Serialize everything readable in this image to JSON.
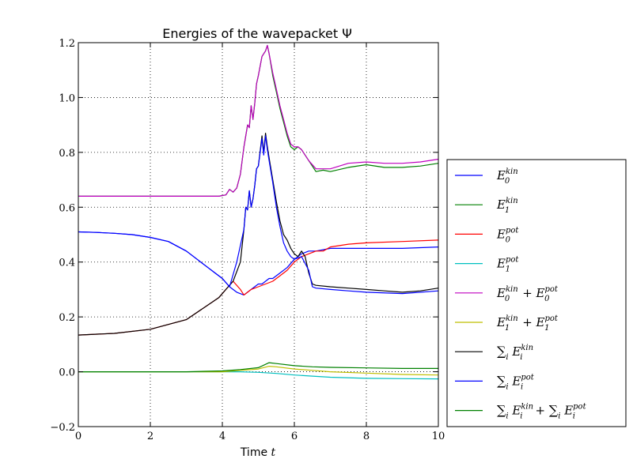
{
  "chart_data": {
    "type": "line",
    "title": "Energies of the wavepacket Ψ",
    "xlabel": "Time t",
    "ylabel": "",
    "xlim": [
      0,
      10
    ],
    "ylim": [
      -0.2,
      1.2
    ],
    "xticks": [
      "0",
      "2",
      "4",
      "6",
      "8",
      "10"
    ],
    "yticks": [
      "−0.2",
      "0.0",
      "0.2",
      "0.4",
      "0.6",
      "0.8",
      "1.0",
      "1.2"
    ],
    "grid": true,
    "legend_position": "right",
    "series": [
      {
        "name": "E₀ᵏⁱⁿ",
        "color": "#0000ff",
        "x": [
          0,
          0.5,
          1,
          1.5,
          2,
          2.5,
          3,
          3.3,
          3.6,
          3.8,
          4,
          4.2,
          4.4,
          4.6,
          4.8,
          5,
          5.1,
          5.2,
          5.3,
          5.4,
          5.6,
          5.8,
          6,
          6.2,
          6.4,
          6.6,
          7,
          8,
          9,
          10
        ],
        "y": [
          0.51,
          0.508,
          0.505,
          0.5,
          0.49,
          0.475,
          0.44,
          0.41,
          0.38,
          0.36,
          0.34,
          0.31,
          0.29,
          0.28,
          0.3,
          0.32,
          0.32,
          0.33,
          0.34,
          0.34,
          0.36,
          0.38,
          0.41,
          0.43,
          0.44,
          0.44,
          0.45,
          0.45,
          0.45,
          0.455
        ]
      },
      {
        "name": "E₁ᵏⁱⁿ",
        "color": "#008000",
        "x": [
          0,
          1,
          2,
          3,
          3.9,
          4.1,
          4.2,
          4.3,
          4.4,
          4.5,
          4.6,
          4.7,
          4.75,
          4.8,
          4.85,
          4.9,
          4.95,
          5,
          5.1,
          5.2,
          5.25,
          5.3,
          5.4,
          5.5,
          5.6,
          5.7,
          5.8,
          5.9,
          6,
          6.1,
          6.2,
          6.4,
          6.6,
          6.8,
          7,
          7.5,
          8,
          8.5,
          9,
          9.5,
          10
        ],
        "y": [
          0.64,
          0.64,
          0.64,
          0.64,
          0.64,
          0.645,
          0.665,
          0.655,
          0.67,
          0.72,
          0.82,
          0.9,
          0.89,
          0.97,
          0.92,
          0.98,
          1.05,
          1.08,
          1.15,
          1.17,
          1.19,
          1.16,
          1.08,
          1.02,
          0.96,
          0.91,
          0.86,
          0.82,
          0.81,
          0.82,
          0.81,
          0.77,
          0.73,
          0.735,
          0.73,
          0.745,
          0.755,
          0.745,
          0.745,
          0.75,
          0.76
        ]
      },
      {
        "name": "E₀ᵖᵒᵗ",
        "color": "#ff0000",
        "x": [
          0,
          1,
          2,
          3,
          3.9,
          4.1,
          4.3,
          4.5,
          4.6,
          4.7,
          4.8,
          5,
          5.2,
          5.4,
          5.6,
          5.8,
          6,
          6.2,
          6.4,
          6.6,
          6.8,
          7,
          7.5,
          8,
          9,
          10
        ],
        "y": [
          0.134,
          0.14,
          0.155,
          0.19,
          0.27,
          0.3,
          0.33,
          0.3,
          0.28,
          0.29,
          0.3,
          0.31,
          0.32,
          0.33,
          0.35,
          0.37,
          0.4,
          0.42,
          0.43,
          0.44,
          0.44,
          0.455,
          0.465,
          0.47,
          0.475,
          0.48
        ]
      },
      {
        "name": "E₁ᵖᵒᵗ",
        "color": "#00bfbf",
        "x": [
          0,
          2,
          3,
          4,
          4.5,
          5,
          5.5,
          6,
          6.5,
          7,
          8,
          9,
          10
        ],
        "y": [
          0.0,
          0.0,
          0.0,
          0.0,
          0.0,
          -0.002,
          -0.006,
          -0.012,
          -0.016,
          -0.02,
          -0.024,
          -0.025,
          -0.026
        ]
      },
      {
        "name": "E₀ᵏⁱⁿ + E₀ᵖᵒᵗ",
        "color": "#bf00bf",
        "x": [
          0,
          1,
          2,
          3,
          3.9,
          4.1,
          4.2,
          4.3,
          4.4,
          4.5,
          4.6,
          4.7,
          4.75,
          4.8,
          4.85,
          4.9,
          4.95,
          5,
          5.1,
          5.2,
          5.25,
          5.3,
          5.4,
          5.5,
          5.6,
          5.7,
          5.8,
          5.9,
          6,
          6.1,
          6.2,
          6.4,
          6.6,
          6.8,
          7,
          7.5,
          8,
          8.5,
          9,
          9.5,
          10
        ],
        "y": [
          0.64,
          0.64,
          0.64,
          0.64,
          0.64,
          0.645,
          0.665,
          0.655,
          0.67,
          0.72,
          0.82,
          0.9,
          0.89,
          0.97,
          0.92,
          0.98,
          1.05,
          1.08,
          1.15,
          1.17,
          1.19,
          1.16,
          1.09,
          1.03,
          0.97,
          0.92,
          0.87,
          0.83,
          0.82,
          0.82,
          0.81,
          0.77,
          0.74,
          0.74,
          0.74,
          0.76,
          0.765,
          0.76,
          0.76,
          0.765,
          0.775
        ]
      },
      {
        "name": "E₁ᵏⁱⁿ + E₁ᵖᵒᵗ",
        "color": "#bfbf00",
        "x": [
          0,
          2,
          3,
          4,
          4.5,
          5,
          5.3,
          5.5,
          6,
          6.5,
          7,
          8,
          9,
          10
        ],
        "y": [
          0.0,
          0.0,
          0.0,
          0.0,
          0.005,
          0.01,
          0.02,
          0.018,
          0.01,
          0.005,
          0.0,
          -0.005,
          -0.01,
          -0.012
        ]
      },
      {
        "name": "∑ᵢ Eᵢᵏⁱⁿ",
        "color": "#000000",
        "x": [
          0,
          1,
          2,
          3,
          3.9,
          4.1,
          4.3,
          4.5,
          4.6,
          4.65,
          4.7,
          4.75,
          4.8,
          4.85,
          4.9,
          4.95,
          5,
          5.1,
          5.15,
          5.2,
          5.25,
          5.3,
          5.4,
          5.5,
          5.6,
          5.7,
          5.8,
          5.9,
          6,
          6.1,
          6.2,
          6.3,
          6.4,
          6.5,
          6.6,
          7,
          7.5,
          8,
          8.5,
          9,
          9.5,
          10
        ],
        "y": [
          0.134,
          0.14,
          0.155,
          0.19,
          0.27,
          0.3,
          0.33,
          0.4,
          0.52,
          0.6,
          0.59,
          0.66,
          0.6,
          0.63,
          0.68,
          0.74,
          0.75,
          0.86,
          0.8,
          0.87,
          0.82,
          0.78,
          0.7,
          0.62,
          0.55,
          0.5,
          0.48,
          0.45,
          0.43,
          0.42,
          0.44,
          0.42,
          0.36,
          0.32,
          0.315,
          0.31,
          0.305,
          0.3,
          0.295,
          0.29,
          0.295,
          0.305
        ]
      },
      {
        "name": "∑ᵢ Eᵢᵖᵒᵗ",
        "color": "#0000ff",
        "x": [
          0,
          0.5,
          1,
          1.5,
          2,
          2.5,
          3,
          3.3,
          3.6,
          3.8,
          4,
          4.2,
          4.4,
          4.6,
          4.65,
          4.7,
          4.75,
          4.8,
          4.85,
          4.9,
          4.95,
          5,
          5.1,
          5.15,
          5.2,
          5.25,
          5.3,
          5.4,
          5.5,
          5.6,
          5.7,
          5.8,
          5.9,
          6,
          6.2,
          6.4,
          6.5,
          6.6,
          7,
          7.5,
          8,
          9,
          10
        ],
        "y": [
          0.51,
          0.508,
          0.505,
          0.5,
          0.49,
          0.475,
          0.44,
          0.41,
          0.38,
          0.36,
          0.34,
          0.31,
          0.4,
          0.52,
          0.6,
          0.59,
          0.66,
          0.6,
          0.63,
          0.68,
          0.74,
          0.75,
          0.85,
          0.79,
          0.86,
          0.81,
          0.77,
          0.69,
          0.6,
          0.53,
          0.47,
          0.44,
          0.42,
          0.41,
          0.42,
          0.37,
          0.31,
          0.305,
          0.3,
          0.295,
          0.29,
          0.285,
          0.295
        ]
      },
      {
        "name": "∑ᵢ Eᵢᵏⁱⁿ + ∑ᵢ Eᵢᵖᵒᵗ",
        "color": "#008000",
        "x": [
          0,
          2,
          3,
          4,
          4.5,
          5,
          5.3,
          5.5,
          6,
          6.5,
          7,
          8,
          9,
          10
        ],
        "y": [
          0.0,
          0.0,
          0.0,
          0.003,
          0.008,
          0.015,
          0.033,
          0.03,
          0.022,
          0.018,
          0.016,
          0.014,
          0.012,
          0.012
        ]
      }
    ]
  },
  "legend": [
    {
      "base": "E",
      "sub": "0",
      "sup": "kin"
    },
    {
      "base": "E",
      "sub": "1",
      "sup": "kin"
    },
    {
      "base": "E",
      "sub": "0",
      "sup": "pot"
    },
    {
      "base": "E",
      "sub": "1",
      "sup": "pot"
    },
    {
      "base": "E",
      "sub": "0",
      "sup": "kin",
      "plus": "+",
      "base2": "E",
      "sub2": "0",
      "sup2": "pot"
    },
    {
      "base": "E",
      "sub": "1",
      "sup": "kin",
      "plus": "+",
      "base2": "E",
      "sub2": "1",
      "sup2": "pot"
    },
    {
      "sum": "∑",
      "sumsub": "i",
      "base": "E",
      "sub": "i",
      "sup": "kin"
    },
    {
      "sum": "∑",
      "sumsub": "i",
      "base": "E",
      "sub": "i",
      "sup": "pot"
    },
    {
      "sum": "∑",
      "sumsub": "i",
      "base": "E",
      "sub": "i",
      "sup": "kin",
      "plus": "+",
      "sum2": "∑",
      "sumsub2": "i",
      "base2": "E",
      "sub2": "i",
      "sup2": "pot"
    }
  ]
}
